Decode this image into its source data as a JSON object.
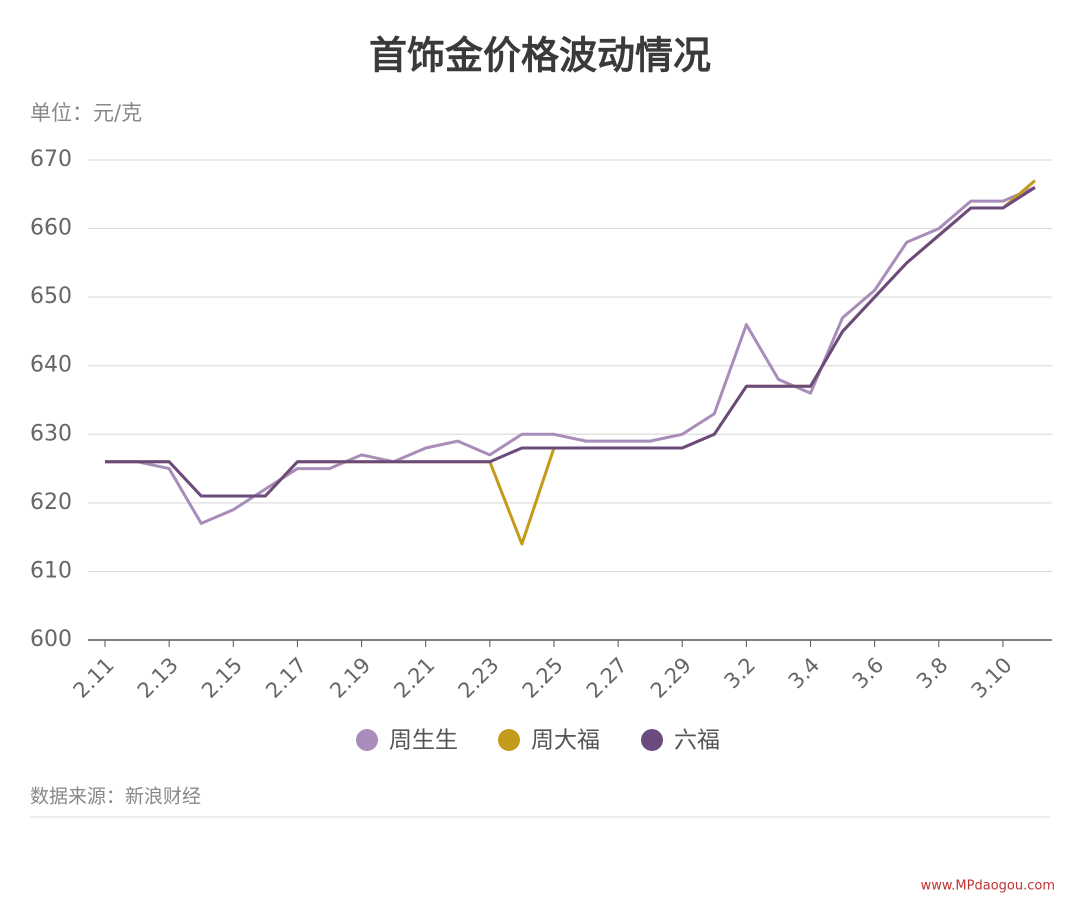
{
  "chart_data": {
    "type": "line",
    "title": "首饰金价格波动情况",
    "subtitle": "单位：元/克",
    "source": "数据来源：新浪财经",
    "watermark": "www.MPdaogou.com",
    "categories": [
      "2.11",
      null,
      "2.13",
      null,
      "2.15",
      null,
      "2.17",
      null,
      "2.19",
      null,
      "2.21",
      null,
      "2.23",
      null,
      "2.25",
      null,
      "2.27",
      null,
      "2.29",
      null,
      "3.2",
      null,
      "3.4",
      null,
      "3.6",
      null,
      "3.8",
      null,
      "3.10",
      null
    ],
    "series": [
      {
        "name": "周生生",
        "color": "#a88dba",
        "values": [
          626,
          626,
          625,
          617,
          619,
          622,
          625,
          625,
          627,
          626,
          628,
          629,
          627,
          630,
          630,
          629,
          629,
          629,
          630,
          633,
          646,
          638,
          636,
          647,
          651,
          658,
          660,
          664,
          664,
          666
        ]
      },
      {
        "name": "周大福",
        "color": "#c49a1a",
        "values": [
          626,
          626,
          626,
          621,
          621,
          621,
          626,
          626,
          626,
          626,
          626,
          626,
          626,
          614,
          628,
          628,
          628,
          628,
          628,
          630,
          637,
          637,
          637,
          645,
          650,
          655,
          659,
          663,
          663,
          667
        ]
      },
      {
        "name": "六福",
        "color": "#6b4a7e",
        "values": [
          626,
          626,
          626,
          621,
          621,
          621,
          626,
          626,
          626,
          626,
          626,
          626,
          626,
          628,
          628,
          628,
          628,
          628,
          628,
          630,
          637,
          637,
          637,
          645,
          650,
          655,
          659,
          663,
          663,
          666
        ]
      }
    ],
    "ylim": [
      600,
      670
    ],
    "yticks": [
      600,
      610,
      620,
      630,
      640,
      650,
      660,
      670
    ],
    "grid": true
  }
}
